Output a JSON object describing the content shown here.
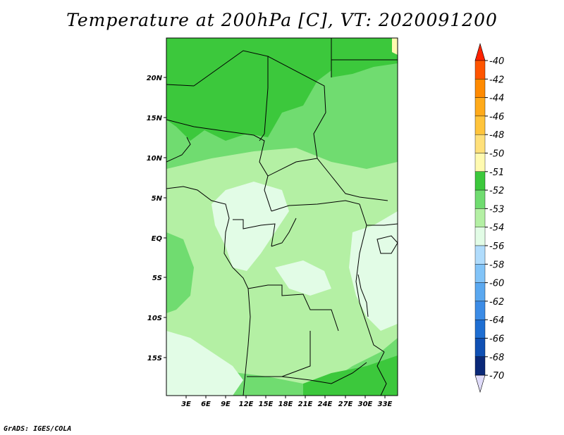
{
  "title": "Temperature at 200hPa [C], VT: 2020091200",
  "credit": "GrADS: IGES/COLA",
  "map": {
    "lat_labels": [
      "20N",
      "15N",
      "10N",
      "5N",
      "EQ",
      "5S",
      "10S",
      "15S"
    ],
    "lon_labels": [
      "3E",
      "6E",
      "9E",
      "12E",
      "15E",
      "18E",
      "21E",
      "24E",
      "27E",
      "30E",
      "33E"
    ]
  },
  "colorbar": {
    "labels": [
      "-40",
      "-42",
      "-44",
      "-46",
      "-48",
      "-50",
      "-51",
      "-52",
      "-53",
      "-54",
      "-56",
      "-58",
      "-60",
      "-62",
      "-64",
      "-66",
      "-68",
      "-70"
    ],
    "colors": [
      "#ff2200",
      "#ff5500",
      "#ff8a00",
      "#ffaa1a",
      "#ffc43c",
      "#ffe07a",
      "#fffab0",
      "#3cc83c",
      "#70dc70",
      "#b4f0a4",
      "#e2fce6",
      "#b0dcfc",
      "#82c4f8",
      "#5aa8f0",
      "#3c8ce6",
      "#1e6ed2",
      "#1050b4",
      "#0a2878",
      "#e0dcfa"
    ]
  }
}
